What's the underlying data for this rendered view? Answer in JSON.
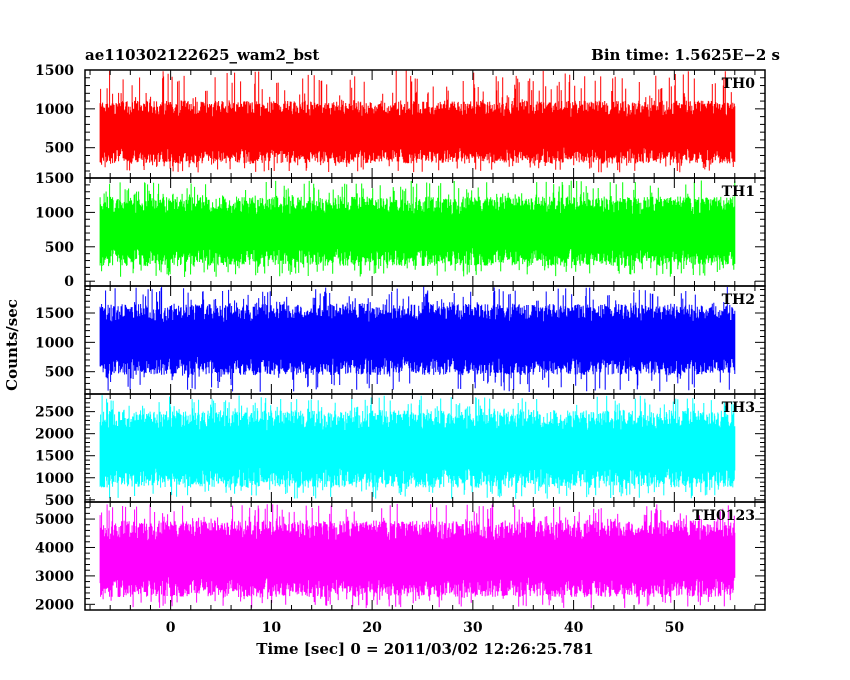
{
  "header": {
    "left": "ae110302122625_wam2_bst",
    "right": "Bin time: 1.5625E−2 s"
  },
  "chart_data": {
    "type": "line",
    "title": "ae110302122625_wam2_bst",
    "subtitle": "Bin time: 1.5625E−2 s",
    "xlabel": "Time [sec] 0 = 2011/03/02 12:26:25.781",
    "ylabel": "Counts/sec",
    "xlim": [
      -8.5,
      59
    ],
    "x_ticks": [
      0,
      10,
      20,
      30,
      40,
      50
    ],
    "x_tick_labels": [
      "0",
      "10",
      "20",
      "30",
      "40",
      "50"
    ],
    "data_x_range": [
      -7.0,
      56.0
    ],
    "bin_time_s": 0.015625,
    "grid": false,
    "panels": [
      {
        "name": "TH0",
        "color": "#ff0000",
        "ylim": [
          110,
          1500
        ],
        "y_ticks": [
          500,
          1000,
          1500
        ],
        "y_tick_labels": [
          "500",
          "1000",
          "1500"
        ],
        "band": [
          400,
          1000
        ],
        "spike_max": 1500,
        "spike_min": 180
      },
      {
        "name": "TH1",
        "color": "#00ff00",
        "ylim": [
          -70,
          1500
        ],
        "y_ticks": [
          0,
          500,
          1000,
          1500
        ],
        "y_tick_labels": [
          "0",
          "500",
          "1000",
          "1500"
        ],
        "band": [
          350,
          1100
        ],
        "spike_max": 1470,
        "spike_min": 60
      },
      {
        "name": "TH2",
        "color": "#0000ff",
        "ylim": [
          120,
          1960
        ],
        "y_ticks": [
          500,
          1000,
          1500
        ],
        "y_tick_labels": [
          "500",
          "1000",
          "1500"
        ],
        "band": [
          600,
          1500
        ],
        "spike_max": 1950,
        "spike_min": 150
      },
      {
        "name": "TH3",
        "color": "#00ffff",
        "ylim": [
          450,
          2900
        ],
        "y_ticks": [
          500,
          1000,
          1500,
          2000,
          2500
        ],
        "y_tick_labels": [
          "500",
          "1000",
          "1500",
          "2000",
          "2500"
        ],
        "band": [
          1000,
          2300
        ],
        "spike_max": 2880,
        "spike_min": 520
      },
      {
        "name": "TH0123",
        "color": "#ff00ff",
        "ylim": [
          1800,
          5600
        ],
        "y_ticks": [
          2000,
          3000,
          4000,
          5000
        ],
        "y_tick_labels": [
          "2000",
          "3000",
          "4000",
          "5000"
        ],
        "band": [
          2600,
          4600
        ],
        "spike_max": 5550,
        "spike_min": 1850
      }
    ]
  }
}
